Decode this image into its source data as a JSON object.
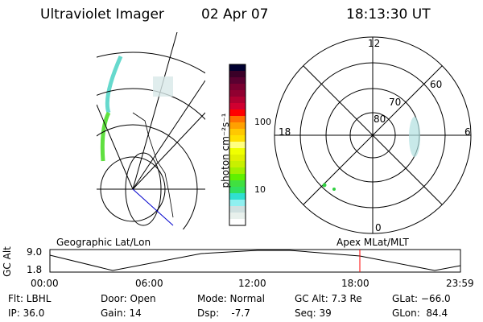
{
  "header": {
    "instrument": "Ultraviolet Imager",
    "date": "02 Apr 07",
    "time": "18:13:30 UT"
  },
  "colorbar": {
    "label": "photon cm⁻²s⁻¹",
    "ticks": [
      "100",
      "10"
    ],
    "colors": [
      "#000030",
      "#3a0028",
      "#5a0030",
      "#7a0030",
      "#900030",
      "#b00030",
      "#d00030",
      "#ff0000",
      "#ff7000",
      "#ffa000",
      "#ffc800",
      "#ffe000",
      "#ffff80",
      "#f0ff00",
      "#e0f000",
      "#c8f000",
      "#a0f000",
      "#60f000",
      "#40e040",
      "#30e060",
      "#30e0d0",
      "#90f0f0",
      "#d0e0e0",
      "#e8f0ec",
      "#ffffff"
    ]
  },
  "polar": {
    "mlt_labels": [
      "12",
      "18",
      "6",
      "0"
    ],
    "mlat_labels": [
      "80",
      "70",
      "60"
    ]
  },
  "panel_labels": {
    "left": "Geographic Lat/Lon",
    "right": "Apex MLat/MLT"
  },
  "altitude_plot": {
    "ylabel": "GC Alt",
    "yticks": [
      "9.0",
      "1.8"
    ],
    "xticks": [
      "00:00",
      "06:00",
      "12:00",
      "18:00",
      "23:59"
    ],
    "current_time_color": "#ff0000"
  },
  "status": {
    "flt": "Flt: LBHL",
    "ip": "IP: 36.0",
    "door": "Door: Open",
    "gain": "Gain: 14",
    "mode": "Mode: Normal",
    "dsp": "Dsp:    -7.7",
    "gcalt": "GC Alt: 7.3 Re",
    "seq": "Seq: 39",
    "glat": "GLat: −66.0",
    "glon": "GLon:  84.4"
  }
}
